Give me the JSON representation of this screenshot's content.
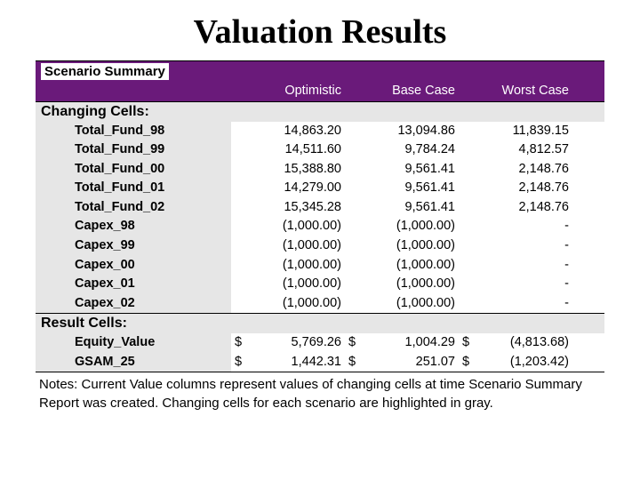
{
  "title": "Valuation Results",
  "summary_label": "Scenario Summary",
  "columns": {
    "c1": "Optimistic",
    "c2": "Base Case",
    "c3": "Worst Case"
  },
  "sections": {
    "changing": "Changing Cells:",
    "result": "Result Cells:"
  },
  "changing_rows": [
    {
      "label": "Total_Fund_98",
      "v1": "14,863.20",
      "v2": "13,094.86",
      "v3": "11,839.15"
    },
    {
      "label": "Total_Fund_99",
      "v1": "14,511.60",
      "v2": "9,784.24",
      "v3": "4,812.57"
    },
    {
      "label": "Total_Fund_00",
      "v1": "15,388.80",
      "v2": "9,561.41",
      "v3": "2,148.76"
    },
    {
      "label": "Total_Fund_01",
      "v1": "14,279.00",
      "v2": "9,561.41",
      "v3": "2,148.76"
    },
    {
      "label": "Total_Fund_02",
      "v1": "15,345.28",
      "v2": "9,561.41",
      "v3": "2,148.76"
    },
    {
      "label": "Capex_98",
      "v1": "(1,000.00)",
      "v2": "(1,000.00)",
      "v3": "-"
    },
    {
      "label": "Capex_99",
      "v1": "(1,000.00)",
      "v2": "(1,000.00)",
      "v3": "-"
    },
    {
      "label": "Capex_00",
      "v1": "(1,000.00)",
      "v2": "(1,000.00)",
      "v3": "-"
    },
    {
      "label": "Capex_01",
      "v1": "(1,000.00)",
      "v2": "(1,000.00)",
      "v3": "-"
    },
    {
      "label": "Capex_02",
      "v1": "(1,000.00)",
      "v2": "(1,000.00)",
      "v3": "-"
    }
  ],
  "result_rows": [
    {
      "label": "Equity_Value",
      "s1": "$",
      "v1": "5,769.26",
      "s2": "$",
      "v2": "1,004.29",
      "s3": "$",
      "v3": "(4,813.68)"
    },
    {
      "label": "GSAM_25",
      "s1": "$",
      "v1": "1,442.31",
      "s2": "$",
      "v2": "251.07",
      "s3": "$",
      "v3": "(1,203.42)"
    }
  ],
  "notes": "Notes:  Current Value columns represent values of changing cells at time Scenario Summary Report was created.  Changing cells for each scenario are highlighted in gray.",
  "colors": {
    "header_bg": "#6a1a7a",
    "header_text": "#ffffff",
    "gray_bg": "#e6e6e6",
    "border": "#000000",
    "page_bg": "#ffffff"
  },
  "typography": {
    "title_font": "Times New Roman",
    "title_size_pt": 30,
    "body_font": "Arial",
    "body_size_pt": 11
  }
}
